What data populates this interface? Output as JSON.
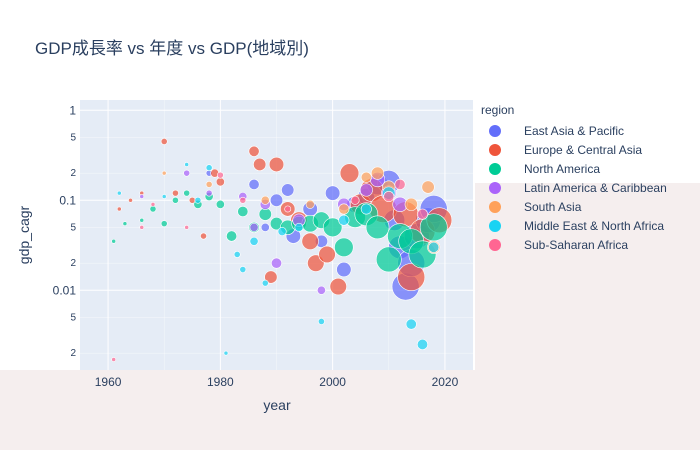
{
  "page": {
    "title": "GDP成長率 vs 年度 vs GDP(地域別)"
  },
  "chart_data": {
    "type": "scatter",
    "title": "GDP成長率 vs 年度 vs GDP(地域別)",
    "xlabel": "year",
    "ylabel": "gdp_cagr",
    "xlim": [
      1955,
      2025
    ],
    "ylim": [
      0.0013,
      1.3
    ],
    "y_scale": "log",
    "x_ticks": [
      "1960",
      "1980",
      "2000",
      "2020"
    ],
    "y_major_ticks": [
      "1",
      "0.1",
      "0.01"
    ],
    "y_minor_ticks": [
      "5",
      "2",
      "5",
      "2",
      "5",
      "2"
    ],
    "grid": true,
    "legend": {
      "title": "region",
      "placement": "right",
      "entries": [
        "East Asia & Pacific",
        "Europe & Central Asia",
        "North America",
        "Latin America & Caribbean",
        "South Asia",
        "Middle East & North Africa",
        "Sub-Saharan Africa"
      ]
    },
    "colors": {
      "East Asia & Pacific": "#636efa",
      "Europe & Central Asia": "#ef553b",
      "North America": "#00cc96",
      "Latin America & Caribbean": "#ab63fa",
      "South Asia": "#ffa15a",
      "Middle East & North Africa": "#19d3f3",
      "Sub-Saharan Africa": "#ff6692"
    },
    "series": [
      {
        "name": "East Asia & Pacific",
        "points": [
          {
            "x": 1978,
            "y": 0.2,
            "size": 2
          },
          {
            "x": 1986,
            "y": 0.15,
            "size": 4
          },
          {
            "x": 1988,
            "y": 0.05,
            "size": 3
          },
          {
            "x": 1990,
            "y": 0.1,
            "size": 5
          },
          {
            "x": 1992,
            "y": 0.13,
            "size": 5
          },
          {
            "x": 1993,
            "y": 0.04,
            "size": 6
          },
          {
            "x": 1996,
            "y": 0.08,
            "size": 6
          },
          {
            "x": 1998,
            "y": 0.035,
            "size": 5
          },
          {
            "x": 2000,
            "y": 0.12,
            "size": 6
          },
          {
            "x": 2002,
            "y": 0.017,
            "size": 6
          },
          {
            "x": 2004,
            "y": 0.09,
            "size": 7
          },
          {
            "x": 2006,
            "y": 0.11,
            "size": 7
          },
          {
            "x": 2008,
            "y": 0.15,
            "size": 9
          },
          {
            "x": 2010,
            "y": 0.16,
            "size": 10
          },
          {
            "x": 2011,
            "y": 0.06,
            "size": 9
          },
          {
            "x": 2012,
            "y": 0.03,
            "size": 10
          },
          {
            "x": 2013,
            "y": 0.011,
            "size": 12
          },
          {
            "x": 2014,
            "y": 0.02,
            "size": 12
          },
          {
            "x": 2015,
            "y": 0.04,
            "size": 11
          },
          {
            "x": 2017,
            "y": 0.06,
            "size": 11
          },
          {
            "x": 2018,
            "y": 0.08,
            "size": 12
          }
        ]
      },
      {
        "name": "Europe & Central Asia",
        "points": [
          {
            "x": 1962,
            "y": 0.08,
            "size": 1
          },
          {
            "x": 1964,
            "y": 0.1,
            "size": 1
          },
          {
            "x": 1966,
            "y": 0.12,
            "size": 1
          },
          {
            "x": 1970,
            "y": 0.45,
            "size": 2
          },
          {
            "x": 1972,
            "y": 0.12,
            "size": 2
          },
          {
            "x": 1975,
            "y": 0.1,
            "size": 2
          },
          {
            "x": 1977,
            "y": 0.04,
            "size": 2
          },
          {
            "x": 1979,
            "y": 0.2,
            "size": 3
          },
          {
            "x": 1980,
            "y": 0.16,
            "size": 3
          },
          {
            "x": 1986,
            "y": 0.35,
            "size": 4
          },
          {
            "x": 1987,
            "y": 0.25,
            "size": 5
          },
          {
            "x": 1989,
            "y": 0.014,
            "size": 5
          },
          {
            "x": 1990,
            "y": 0.25,
            "size": 6
          },
          {
            "x": 1992,
            "y": 0.08,
            "size": 6
          },
          {
            "x": 1994,
            "y": 0.06,
            "size": 7
          },
          {
            "x": 1996,
            "y": 0.035,
            "size": 7
          },
          {
            "x": 1997,
            "y": 0.02,
            "size": 7
          },
          {
            "x": 1999,
            "y": 0.025,
            "size": 7
          },
          {
            "x": 2001,
            "y": 0.011,
            "size": 7
          },
          {
            "x": 2003,
            "y": 0.2,
            "size": 8
          },
          {
            "x": 2005,
            "y": 0.09,
            "size": 9
          },
          {
            "x": 2007,
            "y": 0.13,
            "size": 10
          },
          {
            "x": 2009,
            "y": 0.08,
            "size": 12
          },
          {
            "x": 2013,
            "y": 0.07,
            "size": 11
          },
          {
            "x": 2014,
            "y": 0.014,
            "size": 12
          },
          {
            "x": 2016,
            "y": 0.045,
            "size": 11
          },
          {
            "x": 2019,
            "y": 0.06,
            "size": 11
          }
        ]
      },
      {
        "name": "North America",
        "points": [
          {
            "x": 1961,
            "y": 0.035,
            "size": 1
          },
          {
            "x": 1963,
            "y": 0.055,
            "size": 1
          },
          {
            "x": 1966,
            "y": 0.06,
            "size": 1
          },
          {
            "x": 1968,
            "y": 0.08,
            "size": 2
          },
          {
            "x": 1970,
            "y": 0.055,
            "size": 2
          },
          {
            "x": 1972,
            "y": 0.1,
            "size": 2
          },
          {
            "x": 1974,
            "y": 0.12,
            "size": 2
          },
          {
            "x": 1976,
            "y": 0.09,
            "size": 3
          },
          {
            "x": 1978,
            "y": 0.11,
            "size": 3
          },
          {
            "x": 1980,
            "y": 0.09,
            "size": 3
          },
          {
            "x": 1982,
            "y": 0.04,
            "size": 4
          },
          {
            "x": 1984,
            "y": 0.075,
            "size": 4
          },
          {
            "x": 1986,
            "y": 0.05,
            "size": 4
          },
          {
            "x": 1988,
            "y": 0.07,
            "size": 5
          },
          {
            "x": 1990,
            "y": 0.055,
            "size": 5
          },
          {
            "x": 1992,
            "y": 0.05,
            "size": 6
          },
          {
            "x": 1994,
            "y": 0.055,
            "size": 6
          },
          {
            "x": 1996,
            "y": 0.055,
            "size": 7
          },
          {
            "x": 1998,
            "y": 0.06,
            "size": 7
          },
          {
            "x": 2000,
            "y": 0.05,
            "size": 8
          },
          {
            "x": 2002,
            "y": 0.03,
            "size": 8
          },
          {
            "x": 2004,
            "y": 0.065,
            "size": 9
          },
          {
            "x": 2006,
            "y": 0.07,
            "size": 10
          },
          {
            "x": 2008,
            "y": 0.05,
            "size": 10
          },
          {
            "x": 2010,
            "y": 0.022,
            "size": 11
          },
          {
            "x": 2012,
            "y": 0.04,
            "size": 11
          },
          {
            "x": 2014,
            "y": 0.035,
            "size": 11
          },
          {
            "x": 2016,
            "y": 0.025,
            "size": 12
          },
          {
            "x": 2018,
            "y": 0.05,
            "size": 12
          }
        ]
      },
      {
        "name": "Latin America & Caribbean",
        "points": [
          {
            "x": 1966,
            "y": 0.11,
            "size": 1
          },
          {
            "x": 1974,
            "y": 0.2,
            "size": 2
          },
          {
            "x": 1978,
            "y": 0.12,
            "size": 2
          },
          {
            "x": 1984,
            "y": 0.11,
            "size": 3
          },
          {
            "x": 1986,
            "y": 0.05,
            "size": 3
          },
          {
            "x": 1988,
            "y": 0.09,
            "size": 4
          },
          {
            "x": 1990,
            "y": 0.02,
            "size": 4
          },
          {
            "x": 1994,
            "y": 0.06,
            "size": 5
          },
          {
            "x": 1998,
            "y": 0.01,
            "size": 3
          },
          {
            "x": 2002,
            "y": 0.09,
            "size": 5
          },
          {
            "x": 2006,
            "y": 0.13,
            "size": 5
          },
          {
            "x": 2008,
            "y": 0.17,
            "size": 6
          },
          {
            "x": 2010,
            "y": 0.12,
            "size": 6
          },
          {
            "x": 2012,
            "y": 0.09,
            "size": 6
          }
        ]
      },
      {
        "name": "South Asia",
        "points": [
          {
            "x": 1970,
            "y": 0.2,
            "size": 1
          },
          {
            "x": 1978,
            "y": 0.15,
            "size": 2
          },
          {
            "x": 1988,
            "y": 0.1,
            "size": 3
          },
          {
            "x": 1996,
            "y": 0.09,
            "size": 3
          },
          {
            "x": 2002,
            "y": 0.08,
            "size": 4
          },
          {
            "x": 2006,
            "y": 0.18,
            "size": 4
          },
          {
            "x": 2008,
            "y": 0.2,
            "size": 5
          },
          {
            "x": 2010,
            "y": 0.14,
            "size": 5
          },
          {
            "x": 2014,
            "y": 0.09,
            "size": 5
          },
          {
            "x": 2017,
            "y": 0.14,
            "size": 5
          },
          {
            "x": 2018,
            "y": 0.03,
            "size": 5
          }
        ]
      },
      {
        "name": "Middle East & North Africa",
        "points": [
          {
            "x": 1962,
            "y": 0.12,
            "size": 1
          },
          {
            "x": 1970,
            "y": 0.11,
            "size": 1
          },
          {
            "x": 1974,
            "y": 0.25,
            "size": 1
          },
          {
            "x": 1976,
            "y": 0.1,
            "size": 2
          },
          {
            "x": 1978,
            "y": 0.23,
            "size": 2
          },
          {
            "x": 1981,
            "y": 0.002,
            "size": 1
          },
          {
            "x": 1983,
            "y": 0.025,
            "size": 2
          },
          {
            "x": 1984,
            "y": 0.017,
            "size": 2
          },
          {
            "x": 1986,
            "y": 0.035,
            "size": 3
          },
          {
            "x": 1988,
            "y": 0.012,
            "size": 2
          },
          {
            "x": 1991,
            "y": 0.045,
            "size": 3
          },
          {
            "x": 1994,
            "y": 0.05,
            "size": 3
          },
          {
            "x": 1998,
            "y": 0.0045,
            "size": 2
          },
          {
            "x": 2002,
            "y": 0.06,
            "size": 4
          },
          {
            "x": 2006,
            "y": 0.08,
            "size": 4
          },
          {
            "x": 2010,
            "y": 0.12,
            "size": 5
          },
          {
            "x": 2014,
            "y": 0.0042,
            "size": 4
          },
          {
            "x": 2016,
            "y": 0.0025,
            "size": 4
          },
          {
            "x": 2018,
            "y": 0.03,
            "size": 4
          }
        ]
      },
      {
        "name": "Sub-Saharan Africa",
        "points": [
          {
            "x": 1961,
            "y": 0.0017,
            "size": 1
          },
          {
            "x": 1966,
            "y": 0.05,
            "size": 1
          },
          {
            "x": 1968,
            "y": 0.09,
            "size": 1
          },
          {
            "x": 1974,
            "y": 0.05,
            "size": 1
          },
          {
            "x": 1980,
            "y": 0.19,
            "size": 2
          },
          {
            "x": 1984,
            "y": 0.1,
            "size": 2
          },
          {
            "x": 1992,
            "y": 0.08,
            "size": 2
          },
          {
            "x": 2004,
            "y": 0.1,
            "size": 3
          },
          {
            "x": 2010,
            "y": 0.11,
            "size": 4
          },
          {
            "x": 2012,
            "y": 0.15,
            "size": 4
          },
          {
            "x": 2016,
            "y": 0.07,
            "size": 4
          }
        ]
      }
    ]
  }
}
